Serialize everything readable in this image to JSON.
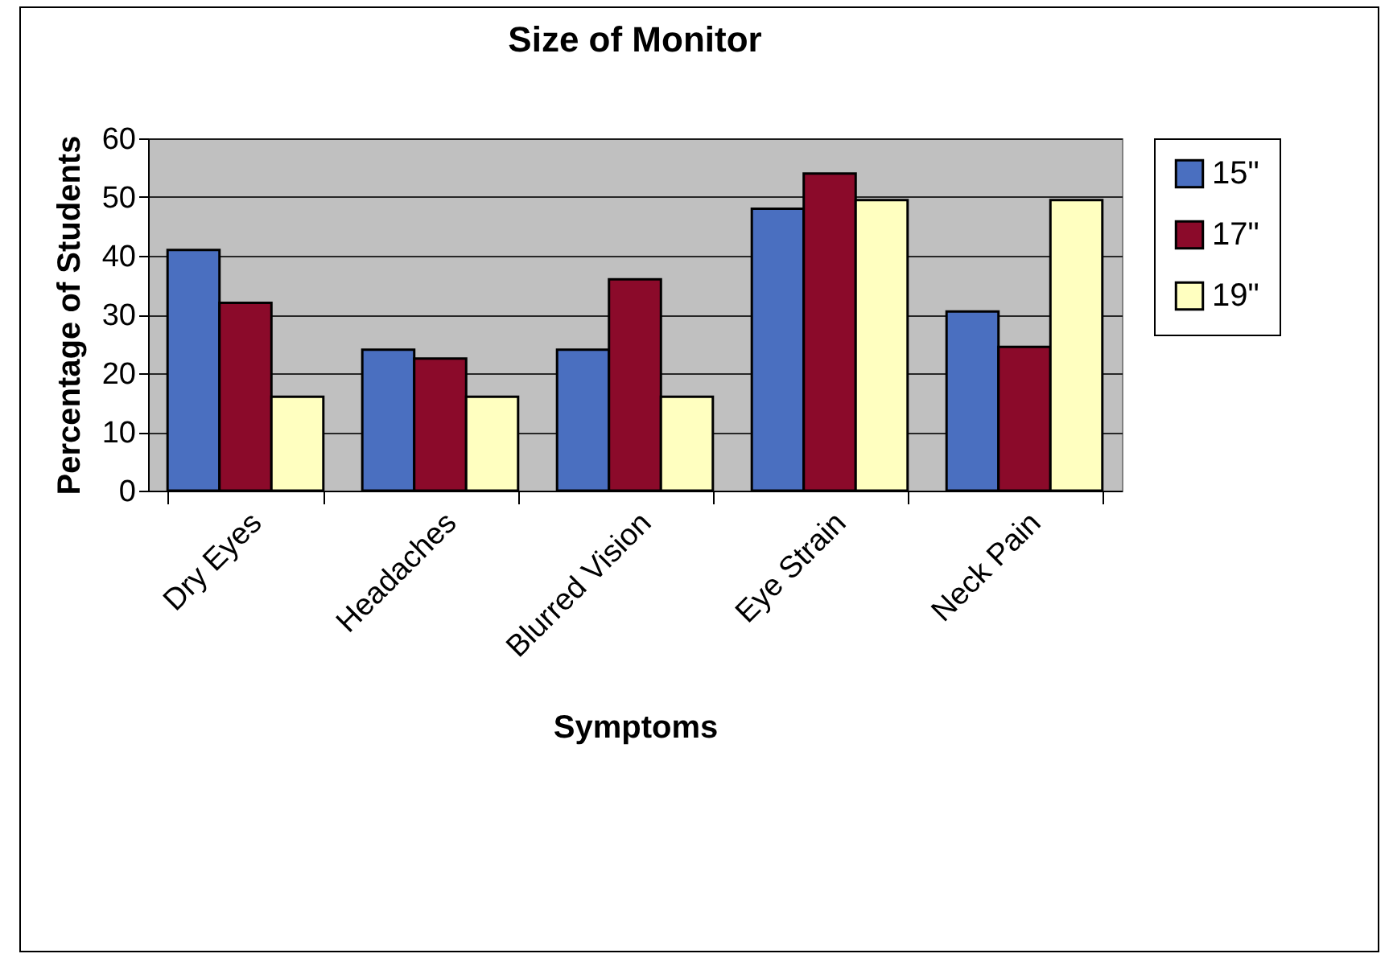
{
  "chart_data": {
    "type": "bar",
    "title": "Size of Monitor",
    "xlabel": "Symptoms",
    "ylabel": "Percentage of Students",
    "categories": [
      "Dry Eyes",
      "Headaches",
      "Blurred Vision",
      "Eye Strain",
      "Neck Pain"
    ],
    "series": [
      {
        "name": "15\"",
        "color": "#4a6fc0",
        "values": [
          41,
          24,
          24,
          48,
          30.5
        ]
      },
      {
        "name": "17\"",
        "color": "#8b0a2a",
        "values": [
          32,
          22.5,
          36,
          54,
          24.5
        ]
      },
      {
        "name": "19\"",
        "color": "#ffffc0",
        "values": [
          16,
          16,
          16,
          49.5,
          49.5
        ]
      }
    ],
    "ylim": [
      0,
      60
    ],
    "yticks": [
      0,
      10,
      20,
      30,
      40,
      50,
      60
    ],
    "grid": "y",
    "legend": "right"
  }
}
